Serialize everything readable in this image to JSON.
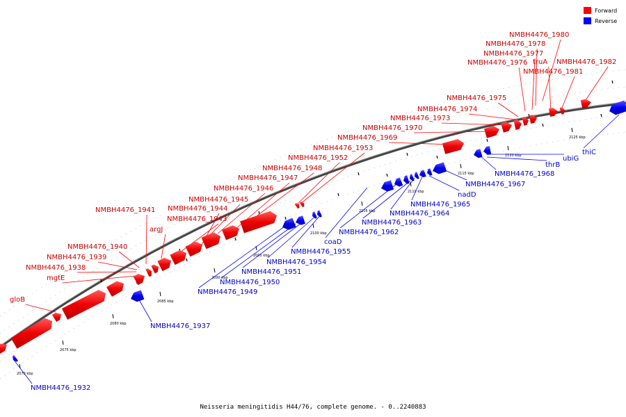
{
  "caption": "Neisseria meningitidis H44/76, complete genome. - 0..2240883",
  "legend": [
    {
      "name": "Forward",
      "color": "#ff0000"
    },
    {
      "name": "Reverse",
      "color": "#0000ff"
    }
  ],
  "colors": {
    "forward": "#ff0000",
    "reverse": "#0000ff",
    "backbone": "#808080"
  },
  "ticks": [
    "2070 kbp",
    "2075 kbp",
    "2080 kbp",
    "2085 kbp",
    "2090 kbp",
    "2095 kbp",
    "2100 kbp",
    "2105 kbp",
    "2110 kbp",
    "2115 kbp",
    "2120 kbp",
    "2125 kbp"
  ],
  "forward_labels": [
    "NMBH4476_1980",
    "NMBH4476_1978",
    "NMBH4476_1977",
    "NMBH4476_1976",
    "truA",
    "NMBH4476_1982",
    "NMBH4476_1981",
    "NMBH4476_1975",
    "NMBH4476_1974",
    "NMBH4476_1973",
    "NMBH4476_1970",
    "NMBH4476_1969",
    "NMBH4476_1953",
    "NMBH4476_1952",
    "NMBH4476_1948",
    "NMBH4476_1947",
    "NMBH4476_1946",
    "NMBH4476_1945",
    "NMBH4476_1941",
    "NMBH4476_1944",
    "NMBH4476_1943",
    "argJ",
    "NMBH4476_1940",
    "NMBH4476_1939",
    "NMBH4476_1938",
    "mgtE",
    "gloB"
  ],
  "reverse_labels": [
    "thiC",
    "ubiG",
    "thrB",
    "NMBH4476_1968",
    "NMBH4476_1967",
    "nadD",
    "NMBH4476_1965",
    "NMBH4476_1964",
    "NMBH4476_1963",
    "NMBH4476_1962",
    "coaD",
    "NMBH4476_1955",
    "NMBH4476_1954",
    "NMBH4476_1951",
    "NMBH4476_1950",
    "NMBH4476_1949",
    "NMBH4476_1937",
    "NMBH4476_1932"
  ]
}
